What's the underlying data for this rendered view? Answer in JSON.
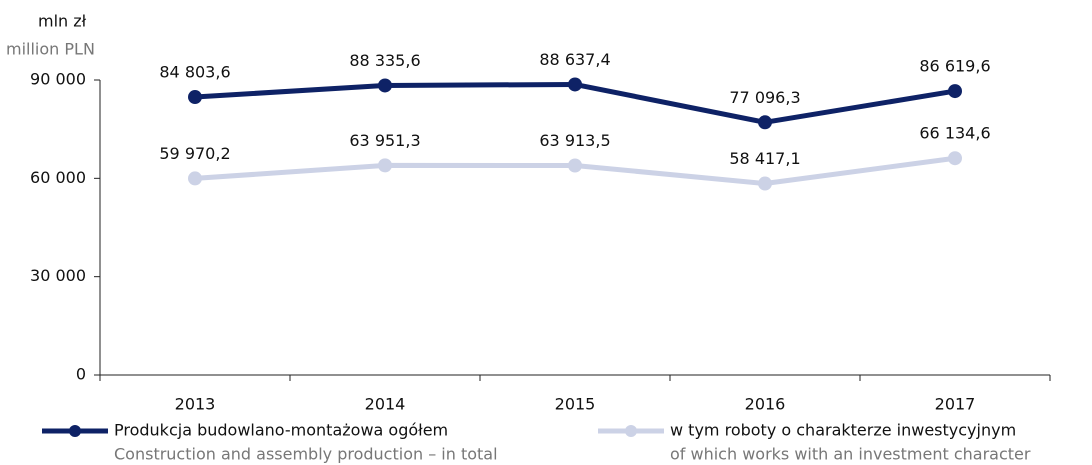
{
  "chart_data": {
    "type": "line",
    "y_label": "mln zł",
    "y_label_en": "million PLN",
    "categories": [
      "2013",
      "2014",
      "2015",
      "2016",
      "2017"
    ],
    "series": [
      {
        "name": "Produkcja budowlano-montażowa ogółem",
        "name_en": "Construction and assembly production – in total",
        "color": "#0e2266",
        "values": [
          84803.6,
          88335.6,
          88637.4,
          77096.3,
          86619.6
        ],
        "value_labels": [
          "84 803,6",
          "88 335,6",
          "88 637,4",
          "77 096,3",
          "86 619,6"
        ]
      },
      {
        "name": "w tym roboty o charakterze inwestycyjnym",
        "name_en": "of which works with an investment character",
        "color": "#ccd2e6",
        "values": [
          59970.2,
          63951.3,
          63913.5,
          58417.1,
          66134.6
        ],
        "value_labels": [
          "59 970,2",
          "63 951,3",
          "63 913,5",
          "58 417,1",
          "66 134,6"
        ]
      }
    ],
    "ylim": [
      0,
      90000
    ],
    "yticks": [
      0,
      {
        "value": 30000,
        "label": "30 000"
      },
      {
        "value": 60000,
        "label": "60 000"
      },
      {
        "value": 90000,
        "label": "90 000"
      }
    ],
    "grid": false
  }
}
